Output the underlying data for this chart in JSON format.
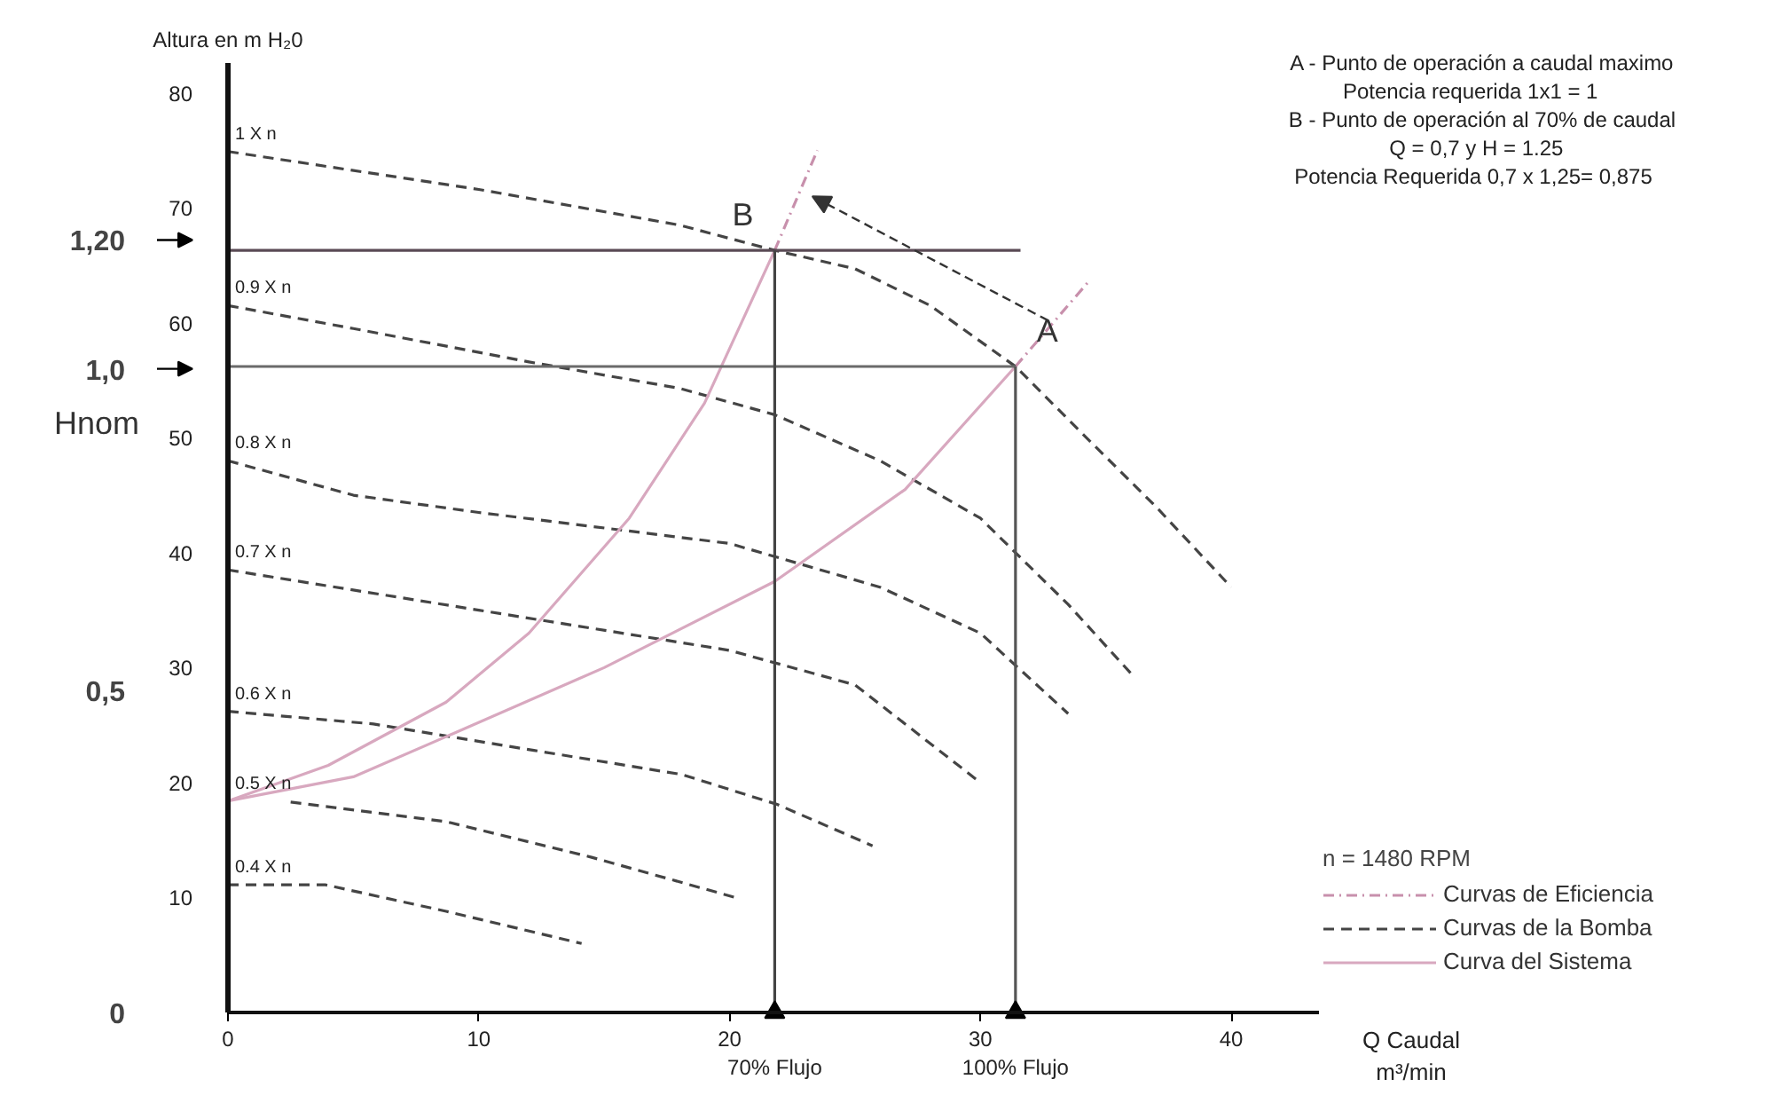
{
  "chart_data": {
    "type": "line",
    "xlabel": "Q Caudal\nm³/min",
    "ylabel": "Altura en m H₂0",
    "xlim": [
      0,
      43.5
    ],
    "ylim": [
      0,
      82.6
    ],
    "xticks": [
      0,
      10,
      20,
      30,
      40
    ],
    "yticks": [
      10,
      20,
      30,
      40,
      50,
      60,
      70,
      80
    ],
    "y2lim": [
      0,
      1.475
    ],
    "y2ticks": [
      0,
      {
        "value": 0.5,
        "label": "0,5"
      },
      {
        "value": 1.0,
        "label": "1,0"
      },
      {
        "value": 1.2,
        "label": "1,20"
      }
    ],
    "grid": false,
    "legend": "bottom right",
    "legend_title": "n = 1480 RPM",
    "series": [
      {
        "name": "Curvas de Eficiencia",
        "color": "#c890ac",
        "line_style": "dotted",
        "x": [
          21.8,
          23.5
        ],
        "values": [
          66.3,
          75
        ]
      },
      {
        "color": "#c890ac",
        "line_style": "dotted",
        "x": [
          31.4,
          34.4
        ],
        "values": [
          56.2,
          63.8
        ]
      },
      {
        "name": "Curvas de la Bomba",
        "color": "#444444",
        "line_style": "dashed",
        "x": [
          0,
          10,
          18,
          21.8,
          25,
          28,
          31.4,
          34,
          37,
          40
        ],
        "values": [
          74.9,
          71.6,
          68.5,
          66.3,
          64.7,
          61.5,
          56.2,
          50.5,
          44,
          37
        ]
      },
      {
        "color": "#444444",
        "line_style": "dashed",
        "x": [
          0,
          5,
          12,
          18,
          21.8,
          26,
          30,
          33.5,
          36
        ],
        "values": [
          61.5,
          59.5,
          56.6,
          54.3,
          52,
          48,
          43,
          35.5,
          29.5
        ]
      },
      {
        "color": "#444444",
        "line_style": "dashed",
        "x": [
          0,
          5,
          10,
          20,
          26,
          30,
          33.5
        ],
        "values": [
          48,
          45,
          43.5,
          40.8,
          37,
          33,
          26
        ]
      },
      {
        "color": "#444444",
        "line_style": "dashed",
        "x": [
          0,
          10,
          20,
          25,
          30
        ],
        "values": [
          38.5,
          35,
          31.5,
          28.5,
          20
        ]
      },
      {
        "color": "#444444",
        "line_style": "dashed",
        "x": [
          0,
          5.8,
          12.2,
          18.1,
          21.9,
          25.7
        ],
        "values": [
          26.2,
          25.1,
          22.8,
          20.7,
          18.1,
          14.5
        ]
      },
      {
        "color": "#444444",
        "line_style": "dashed",
        "x": [
          2.5,
          8.7,
          14.5,
          20.4
        ],
        "values": [
          18.3,
          16.6,
          13.5,
          9.9
        ]
      },
      {
        "color": "#444444",
        "line_style": "dashed",
        "x": [
          0,
          3.9,
          8.7,
          14.1
        ],
        "values": [
          11.1,
          11.1,
          8.8,
          6.0
        ]
      },
      {
        "name": "Curva del Sistema",
        "color": "#d8a8bf",
        "line_style": "solid",
        "x": [
          0,
          4,
          8.7,
          12,
          16,
          19,
          21.8
        ],
        "values": [
          18.4,
          21.5,
          27,
          33,
          43,
          53,
          66.3
        ]
      },
      {
        "color": "#d8a8bf",
        "line_style": "solid",
        "x": [
          0,
          5,
          8.7,
          15,
          21.8,
          27,
          31.4
        ],
        "values": [
          18.4,
          20.5,
          24,
          30,
          37.5,
          45.5,
          56.2
        ]
      },
      {
        "color": "#5a4a55",
        "line_style": "solid",
        "x": [
          0,
          31.6
        ],
        "values": [
          66.3,
          66.3
        ]
      },
      {
        "color": "#6a6a6a",
        "line_style": "solid",
        "x": [
          0,
          31.4
        ],
        "values": [
          56.2,
          56.2
        ]
      },
      {
        "color": "#444444",
        "line_style": "solid",
        "x": [
          21.8,
          21.8
        ],
        "values": [
          0,
          66.3
        ]
      },
      {
        "color": "#555555",
        "line_style": "solid",
        "x": [
          31.4,
          31.4
        ],
        "values": [
          0,
          56.2
        ]
      },
      {
        "type": "scatter",
        "marker": "triangle",
        "color": "#000000",
        "x": [
          21.8,
          31.4
        ],
        "values": [
          0,
          0
        ]
      }
    ],
    "annotations": [
      "A - Punto de operación a caudal maximo",
      "Potencia requerida     1x1 = 1",
      "B - Punto de operación al 70% de caudal",
      "Q = 0,7  y  H = 1.25",
      "Potencia Requerida   0,7 x 1,25=  0,875",
      "Hnom",
      {
        "text": "1 X n",
        "x": 0,
        "y": 74.9
      },
      {
        "text": "0.9 X n",
        "x": 0,
        "y": 61.5
      },
      {
        "text": "0.8 X n",
        "x": 0,
        "y": 48
      },
      {
        "text": "0.7 X n",
        "x": 0,
        "y": 38.5
      },
      {
        "text": "0.6 X n",
        "x": 0,
        "y": 26.2
      },
      {
        "text": "0.5 X n",
        "x": 0,
        "y": 18.4
      },
      {
        "text": "0.4 X n",
        "x": 0,
        "y": 11.1
      },
      {
        "text": "B",
        "x": 21.8,
        "y": 66.3
      },
      {
        "text": "A",
        "x": 31.4,
        "y": 56.2
      },
      {
        "text": "70% Flujo",
        "x": 21.8,
        "y": 0
      },
      {
        "text": "100% Flujo",
        "x": 31.4,
        "y": 0
      }
    ]
  }
}
